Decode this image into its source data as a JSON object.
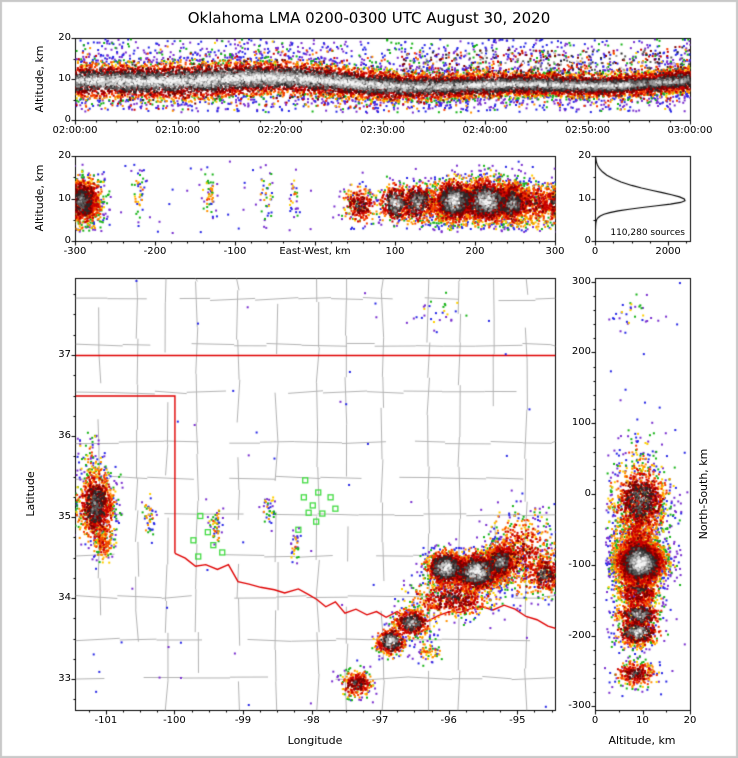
{
  "title": "Oklahoma LMA 0200-0300 UTC August 30, 2020",
  "colors": {
    "background": "#ffffff",
    "frame": "#c8c8c8",
    "axis": "#000000",
    "state_border": "#e00000",
    "county_line": "#b4b4b4",
    "station_marker": "#44dc44",
    "histogram_curve": "#000000",
    "density_scale_low_to_high": [
      "#7a30d0",
      "#2828e6",
      "#18b418",
      "#ffd000",
      "#ff9100",
      "#f53d00",
      "#c80000",
      "#7a0000",
      "#2b2b2b",
      "#5a5a5a",
      "#9a9a9a",
      "#cfcfcf",
      "#f5f5f5"
    ]
  },
  "chart_data": {
    "type": "scatter",
    "description": "Lightning Mapping Array source plots: time-height, east-west cross section, altitude histogram, plan-view map with county and state borders, north-south cross section",
    "projection": {
      "lon_center": -97.95,
      "lat_center": 35.23,
      "km_per_deg_lon": 91,
      "km_per_deg_lat": 111
    },
    "panels": [
      {
        "id": "time_height",
        "type": "scatter",
        "ylabel": "Altitude, km",
        "xlim_seconds": [
          0,
          3600
        ],
        "ylim": [
          0,
          20
        ],
        "x_ticks": {
          "values": [
            0,
            600,
            1200,
            1800,
            2400,
            3000,
            3600
          ],
          "labels": [
            "02:00:00",
            "02:10:00",
            "02:20:00",
            "02:30:00",
            "02:40:00",
            "02:50:00",
            "03:00:00"
          ]
        },
        "y_ticks": {
          "values": [
            0,
            10,
            20
          ],
          "labels": [
            "0",
            "10",
            "20"
          ]
        },
        "band": {
          "n": 15000,
          "alt_mean_km": 9.2,
          "alt_sigma_km": 2.1,
          "outliers_high": 550,
          "outliers_low": 260
        }
      },
      {
        "id": "ew_altitude",
        "type": "scatter",
        "xlabel": "East-West, km",
        "ylabel": "Altitude, km",
        "xlim": [
          -300,
          300
        ],
        "ylim": [
          0,
          20
        ],
        "x_ticks": {
          "values": [
            -300,
            -200,
            -100,
            100,
            200,
            300
          ],
          "labels": [
            "-300",
            "-200",
            "-100",
            "100",
            "200",
            "300"
          ]
        },
        "y_ticks": {
          "values": [
            0,
            10,
            20
          ],
          "labels": [
            "0",
            "10",
            "20"
          ]
        }
      },
      {
        "id": "altitude_histogram",
        "type": "line",
        "annotation": "110,280 sources",
        "xlim": [
          0,
          2600
        ],
        "ylim": [
          0,
          20
        ],
        "x_ticks": {
          "values": [
            0,
            2000
          ],
          "labels": [
            "0",
            "2000"
          ]
        },
        "y_ticks": {
          "values": [
            0,
            10,
            20
          ],
          "labels": [
            "0",
            "10",
            "20"
          ]
        },
        "curve": {
          "alt_km": [
            2.8,
            3.6,
            4.2,
            4.8,
            5.2,
            5.6,
            6.0,
            6.4,
            6.8,
            7.2,
            7.6,
            8.0,
            8.4,
            8.8,
            9.2,
            9.6,
            10.0,
            10.5,
            11.0,
            11.5,
            12.0,
            12.6,
            13.2,
            14.0,
            14.8,
            15.6,
            16.4,
            17.2,
            18.0,
            18.8,
            19.6,
            20.0
          ],
          "count": [
            0,
            3,
            8,
            18,
            35,
            70,
            130,
            230,
            390,
            620,
            920,
            1280,
            1680,
            2050,
            2330,
            2450,
            2430,
            2300,
            2080,
            1830,
            1560,
            1260,
            990,
            700,
            480,
            310,
            190,
            105,
            52,
            22,
            8,
            3
          ]
        }
      },
      {
        "id": "map",
        "type": "scatter",
        "xlabel": "Longitude",
        "ylabel": "Latitude",
        "xlim": [
          -101.45,
          -94.45
        ],
        "ylim": [
          32.62,
          37.95
        ],
        "x_ticks": {
          "values": [
            -101,
            -100,
            -99,
            -98,
            -97,
            -96,
            -95
          ],
          "labels": [
            "-101",
            "-100",
            "-99",
            "-98",
            "-97",
            "-96",
            "-95"
          ]
        },
        "y_ticks": {
          "values": [
            33,
            34,
            35,
            36,
            37
          ],
          "labels": [
            "33",
            "34",
            "35",
            "36",
            "37"
          ]
        },
        "stations": [
          {
            "lon": -98.1,
            "lat": 35.46
          },
          {
            "lon": -97.91,
            "lat": 35.31
          },
          {
            "lon": -98.12,
            "lat": 35.25
          },
          {
            "lon": -97.99,
            "lat": 35.15
          },
          {
            "lon": -97.73,
            "lat": 35.25
          },
          {
            "lon": -97.66,
            "lat": 35.11
          },
          {
            "lon": -98.05,
            "lat": 35.06
          },
          {
            "lon": -97.85,
            "lat": 35.05
          },
          {
            "lon": -97.94,
            "lat": 34.95
          },
          {
            "lon": -98.2,
            "lat": 34.85
          },
          {
            "lon": -99.63,
            "lat": 35.02
          },
          {
            "lon": -99.52,
            "lat": 34.82
          },
          {
            "lon": -99.73,
            "lat": 34.72
          },
          {
            "lon": -99.44,
            "lat": 34.66
          },
          {
            "lon": -99.31,
            "lat": 34.57
          },
          {
            "lon": -99.66,
            "lat": 34.52
          }
        ],
        "state_border": {
          "kansas_line": [
            [
              -101.45,
              37.0
            ],
            [
              -94.45,
              37.0
            ]
          ],
          "panhandle": [
            [
              -101.45,
              36.5
            ],
            [
              -100.0,
              36.5
            ],
            [
              -100.0,
              34.56
            ]
          ],
          "red_river": [
            [
              -100.0,
              34.56
            ],
            [
              -99.85,
              34.5
            ],
            [
              -99.7,
              34.4
            ],
            [
              -99.55,
              34.42
            ],
            [
              -99.38,
              34.36
            ],
            [
              -99.22,
              34.42
            ],
            [
              -99.08,
              34.21
            ],
            [
              -98.92,
              34.18
            ],
            [
              -98.75,
              34.14
            ],
            [
              -98.55,
              34.11
            ],
            [
              -98.4,
              34.07
            ],
            [
              -98.2,
              34.12
            ],
            [
              -98.05,
              34.05
            ],
            [
              -97.93,
              33.99
            ],
            [
              -97.8,
              33.9
            ],
            [
              -97.66,
              33.96
            ],
            [
              -97.52,
              33.82
            ],
            [
              -97.36,
              33.87
            ],
            [
              -97.2,
              33.8
            ],
            [
              -97.06,
              33.84
            ],
            [
              -96.92,
              33.77
            ],
            [
              -96.76,
              33.84
            ],
            [
              -96.62,
              33.76
            ],
            [
              -96.46,
              33.8
            ],
            [
              -96.32,
              33.72
            ],
            [
              -96.16,
              33.79
            ],
            [
              -96.0,
              33.84
            ],
            [
              -95.84,
              33.83
            ],
            [
              -95.68,
              33.88
            ],
            [
              -95.52,
              33.9
            ],
            [
              -95.36,
              33.86
            ],
            [
              -95.2,
              33.92
            ],
            [
              -95.04,
              33.87
            ],
            [
              -94.88,
              33.78
            ],
            [
              -94.72,
              33.74
            ],
            [
              -94.56,
              33.66
            ],
            [
              -94.44,
              33.63
            ]
          ]
        },
        "county_grid": {
          "seed": 13
        }
      },
      {
        "id": "ns_altitude",
        "type": "scatter",
        "xlabel": "Altitude, km",
        "ylabel": "North-South, km",
        "xlim": [
          0,
          20
        ],
        "ylim": [
          -305,
          305
        ],
        "x_ticks": {
          "values": [
            0,
            10,
            20
          ],
          "labels": [
            "0",
            "10",
            "20"
          ]
        },
        "y_ticks": {
          "values": [
            300,
            200,
            100,
            0,
            -100,
            -200,
            -300
          ],
          "labels": [
            "300",
            "200",
            "100",
            "0",
            "-100",
            "-200",
            "-300"
          ]
        }
      }
    ],
    "clusters": [
      {
        "name": "west-storm",
        "lon": -101.15,
        "lat": 35.15,
        "slon": 0.13,
        "slat": 0.22,
        "alt": 9.5,
        "salt": 2.9,
        "n": 1100,
        "peak": 0.82
      },
      {
        "name": "west-north-specks",
        "lon": -101.25,
        "lat": 35.75,
        "slon": 0.1,
        "slat": 0.18,
        "alt": 9.0,
        "salt": 2.5,
        "n": 70,
        "peak": 0.28
      },
      {
        "name": "west-south-cell",
        "lon": -101.05,
        "lat": 34.7,
        "slon": 0.08,
        "slat": 0.12,
        "alt": 8.5,
        "salt": 2.2,
        "n": 160,
        "peak": 0.5
      },
      {
        "name": "se-core-west",
        "lon": -96.05,
        "lat": 34.38,
        "slon": 0.14,
        "slat": 0.1,
        "alt": 9.5,
        "salt": 2.5,
        "n": 1200,
        "peak": 1.0
      },
      {
        "name": "se-core-mid",
        "lon": -95.6,
        "lat": 34.33,
        "slon": 0.18,
        "slat": 0.12,
        "alt": 9.5,
        "salt": 2.6,
        "n": 1400,
        "peak": 1.0
      },
      {
        "name": "se-core-east",
        "lon": -95.25,
        "lat": 34.45,
        "slon": 0.12,
        "slat": 0.12,
        "alt": 9.0,
        "salt": 2.6,
        "n": 800,
        "peak": 0.85
      },
      {
        "name": "se-east-fringe",
        "lon": -94.95,
        "lat": 34.55,
        "slon": 0.26,
        "slat": 0.26,
        "alt": 9.0,
        "salt": 2.8,
        "n": 700,
        "peak": 0.6
      },
      {
        "name": "right-edge-cell",
        "lon": -94.6,
        "lat": 34.3,
        "slon": 0.12,
        "slat": 0.12,
        "alt": 9.0,
        "salt": 2.4,
        "n": 350,
        "peak": 0.8
      },
      {
        "name": "se-south-band",
        "lon": -95.95,
        "lat": 34.0,
        "slon": 0.3,
        "slat": 0.12,
        "alt": 9.0,
        "salt": 2.4,
        "n": 650,
        "peak": 0.7
      },
      {
        "name": "durant-cell",
        "lon": -96.55,
        "lat": 33.7,
        "slon": 0.13,
        "slat": 0.08,
        "alt": 9.0,
        "salt": 2.3,
        "n": 500,
        "peak": 0.92
      },
      {
        "name": "sherman-cell",
        "lon": -96.85,
        "lat": 33.47,
        "slon": 0.1,
        "slat": 0.08,
        "alt": 9.0,
        "salt": 2.2,
        "n": 450,
        "peak": 1.0
      },
      {
        "name": "south-cell",
        "lon": -97.35,
        "lat": 32.95,
        "slon": 0.11,
        "slat": 0.08,
        "alt": 8.5,
        "salt": 2.2,
        "n": 300,
        "peak": 0.75
      },
      {
        "name": "small-cell-1",
        "lon": -100.37,
        "lat": 35.0,
        "slon": 0.05,
        "slat": 0.14,
        "alt": 11.0,
        "salt": 3.2,
        "n": 45,
        "peak": 0.3
      },
      {
        "name": "small-cell-2",
        "lon": -99.4,
        "lat": 34.9,
        "slon": 0.05,
        "slat": 0.12,
        "alt": 11.0,
        "salt": 3.0,
        "n": 55,
        "peak": 0.32
      },
      {
        "name": "small-cell-3",
        "lon": -98.62,
        "lat": 35.1,
        "slon": 0.05,
        "slat": 0.1,
        "alt": 11.0,
        "salt": 3.0,
        "n": 40,
        "peak": 0.28
      },
      {
        "name": "small-cell-4",
        "lon": -98.25,
        "lat": 34.65,
        "slon": 0.04,
        "slat": 0.1,
        "alt": 10.0,
        "salt": 3.0,
        "n": 32,
        "peak": 0.24
      },
      {
        "name": "small-cell-5",
        "lon": -96.3,
        "lat": 33.35,
        "slon": 0.09,
        "slat": 0.08,
        "alt": 8.0,
        "salt": 2.0,
        "n": 70,
        "peak": 0.35
      },
      {
        "name": "kansas-specks",
        "lon": -96.1,
        "lat": 37.55,
        "slon": 0.25,
        "slat": 0.12,
        "alt": 7.5,
        "salt": 2.5,
        "n": 25,
        "peak": 0.22
      }
    ],
    "noise_points": {
      "n": 50
    }
  }
}
